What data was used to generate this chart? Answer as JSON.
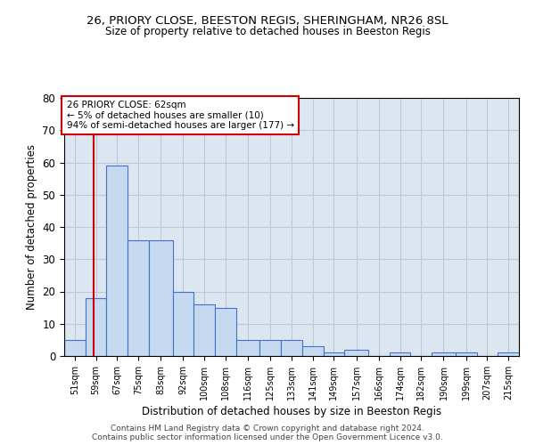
{
  "title1": "26, PRIORY CLOSE, BEESTON REGIS, SHERINGHAM, NR26 8SL",
  "title2": "Size of property relative to detached houses in Beeston Regis",
  "xlabel": "Distribution of detached houses by size in Beeston Regis",
  "ylabel": "Number of detached properties",
  "footnote1": "Contains HM Land Registry data © Crown copyright and database right 2024.",
  "footnote2": "Contains public sector information licensed under the Open Government Licence v3.0.",
  "annotation_line1": "26 PRIORY CLOSE: 62sqm",
  "annotation_line2": "← 5% of detached houses are smaller (10)",
  "annotation_line3": "94% of semi-detached houses are larger (177) →",
  "property_line_x": 62,
  "bar_labels": [
    "51sqm",
    "59sqm",
    "67sqm",
    "75sqm",
    "83sqm",
    "92sqm",
    "100sqm",
    "108sqm",
    "116sqm",
    "125sqm",
    "133sqm",
    "141sqm",
    "149sqm",
    "157sqm",
    "166sqm",
    "174sqm",
    "182sqm",
    "190sqm",
    "199sqm",
    "207sqm",
    "215sqm"
  ],
  "bar_edges": [
    51,
    59,
    67,
    75,
    83,
    92,
    100,
    108,
    116,
    125,
    133,
    141,
    149,
    157,
    166,
    174,
    182,
    190,
    199,
    207,
    215,
    223
  ],
  "bar_values": [
    5,
    18,
    59,
    36,
    36,
    20,
    16,
    15,
    5,
    5,
    5,
    3,
    1,
    2,
    0,
    1,
    0,
    1,
    1,
    0,
    1
  ],
  "bar_color": "#c6d9f1",
  "bar_edge_color": "#4472c4",
  "property_line_color": "#cc0000",
  "annotation_box_color": "#cc0000",
  "grid_color": "#c0c8d8",
  "background_color": "#dce6f1",
  "ylim": [
    0,
    80
  ],
  "yticks": [
    0,
    10,
    20,
    30,
    40,
    50,
    60,
    70,
    80
  ]
}
